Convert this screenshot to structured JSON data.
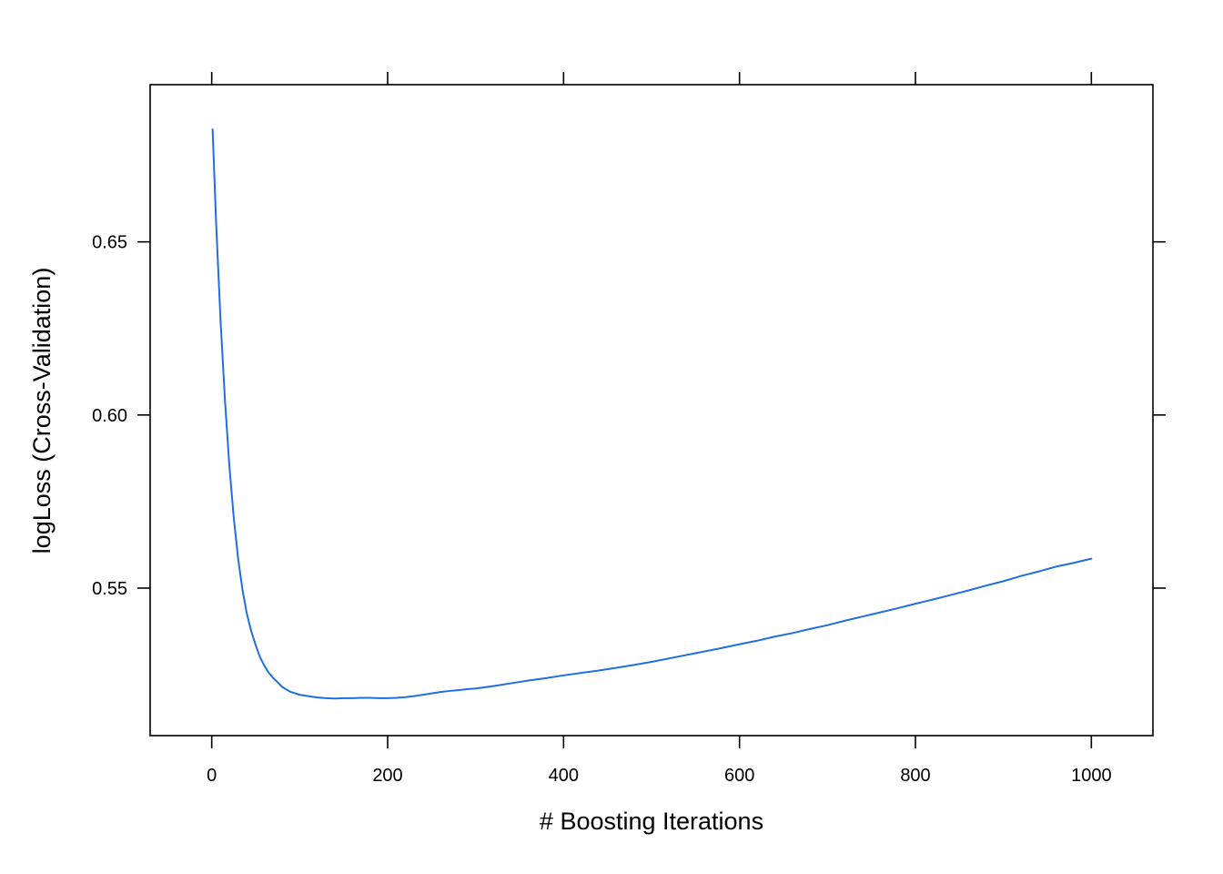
{
  "chart_data": {
    "type": "line",
    "xlabel": "# Boosting Iterations",
    "ylabel": "logLoss (Cross-Validation)",
    "xlim": [
      -70,
      1070
    ],
    "ylim": [
      0.5074,
      0.6954
    ],
    "x_ticks": [
      0,
      200,
      400,
      600,
      800,
      1000
    ],
    "x_tick_labels": [
      "0",
      "200",
      "400",
      "600",
      "800",
      "1000"
    ],
    "y_ticks": [
      0.55,
      0.6,
      0.65
    ],
    "y_tick_labels": [
      "0.55",
      "0.60",
      "0.65"
    ],
    "grid": false,
    "line_color": "#1f6fe0",
    "series": [
      {
        "x": [
          1,
          5,
          10,
          15,
          20,
          25,
          30,
          35,
          40,
          45,
          50,
          55,
          60,
          65,
          70,
          75,
          80,
          85,
          90,
          95,
          100,
          110,
          120,
          130,
          140,
          150,
          160,
          170,
          180,
          190,
          200,
          210,
          220,
          230,
          240,
          250,
          260,
          270,
          280,
          290,
          300,
          320,
          340,
          360,
          380,
          400,
          420,
          440,
          460,
          480,
          500,
          520,
          540,
          560,
          580,
          600,
          620,
          640,
          660,
          680,
          700,
          720,
          740,
          760,
          780,
          800,
          820,
          840,
          860,
          880,
          900,
          920,
          940,
          960,
          980,
          1000
        ],
        "y": [
          0.6825,
          0.6555,
          0.6275,
          0.6045,
          0.5855,
          0.5705,
          0.5585,
          0.5495,
          0.5425,
          0.5375,
          0.5335,
          0.53,
          0.5275,
          0.5255,
          0.524,
          0.5228,
          0.5215,
          0.5207,
          0.52,
          0.5196,
          0.5192,
          0.5188,
          0.5184,
          0.5182,
          0.5181,
          0.5182,
          0.5182,
          0.5183,
          0.5183,
          0.5182,
          0.5182,
          0.5183,
          0.5185,
          0.5188,
          0.5192,
          0.5196,
          0.52,
          0.5203,
          0.5205,
          0.5208,
          0.521,
          0.5217,
          0.5225,
          0.5233,
          0.524,
          0.5248,
          0.5255,
          0.5262,
          0.527,
          0.5278,
          0.5287,
          0.5297,
          0.5307,
          0.5317,
          0.5327,
          0.5338,
          0.5348,
          0.536,
          0.537,
          0.5382,
          0.5393,
          0.5406,
          0.5418,
          0.543,
          0.5442,
          0.5455,
          0.5467,
          0.548,
          0.5493,
          0.5507,
          0.552,
          0.5535,
          0.5548,
          0.5562,
          0.5573,
          0.5585
        ]
      }
    ]
  }
}
